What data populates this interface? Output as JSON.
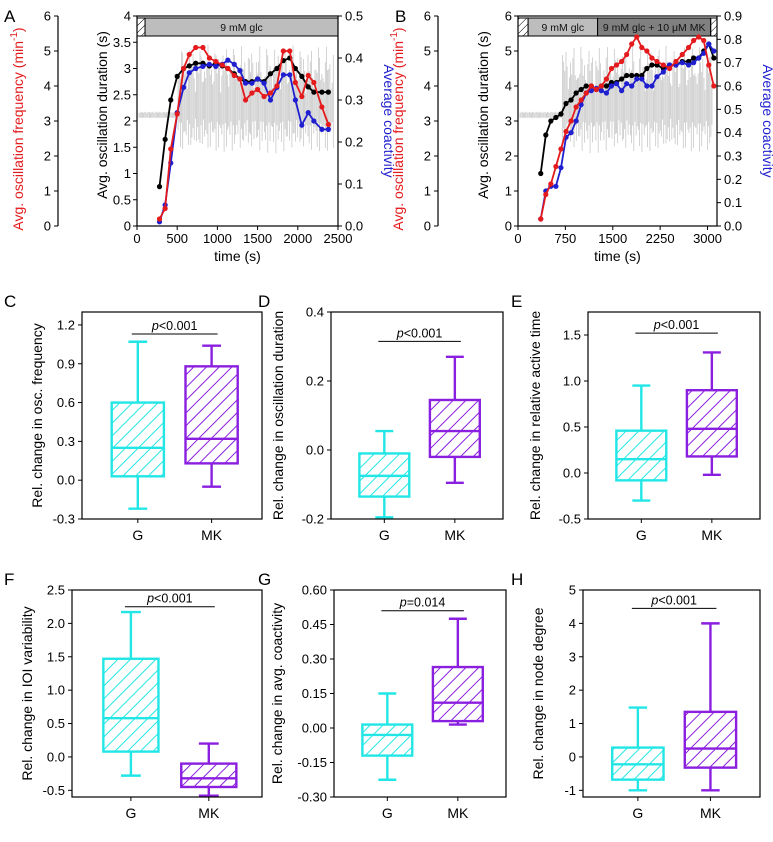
{
  "figure": {
    "colors": {
      "freq": "#e41a1c",
      "dur": "#000000",
      "coact": "#1f1fd0",
      "trace": "#c8c8c8",
      "g_box": "#22e6e6",
      "mk_box": "#8a1fe0",
      "bar_fill": "#bdbdbd",
      "bar_dark": "#808080"
    }
  },
  "chart_data": [
    {
      "id": "A",
      "panel_label": "A",
      "type": "line",
      "xlabel": "time (s)",
      "ylabel_left_outer": "Avg. oscillation frequency (min",
      "ylabel_left_outer_sup": "-1",
      "ylabel_left_outer_close": ")",
      "ylabel_left_inner": "Avg. oscillation duration (s)",
      "ylabel_right": "Average coactivity",
      "xlim": [
        0,
        2500
      ],
      "xticks": [
        "0",
        "500",
        "1000",
        "1500",
        "2000",
        "2500"
      ],
      "ylim_freq": [
        0,
        6
      ],
      "yticks_freq": [
        "0",
        "1",
        "2",
        "3",
        "4",
        "5",
        "6"
      ],
      "ylim_dur": [
        0,
        4
      ],
      "yticks_dur": [
        "0",
        "0.5",
        "1",
        "1.5",
        "2",
        "2.5",
        "3",
        "3.5",
        "4"
      ],
      "ylim_coact": [
        0,
        0.5
      ],
      "yticks_coact": [
        "0.0",
        "0.1",
        "0.2",
        "0.3",
        "0.4",
        "0.5"
      ],
      "condition_bar": [
        {
          "label": "",
          "start": 0,
          "end": 100,
          "style": "hatch"
        },
        {
          "label": "9 mM glc",
          "start": 100,
          "end": 2500,
          "style": "light"
        }
      ],
      "series": [
        {
          "name": "Avg. oscillation frequency",
          "axis": "freq",
          "x": [
            280,
            350,
            420,
            500,
            580,
            650,
            730,
            820,
            900,
            980,
            1060,
            1130,
            1210,
            1280,
            1350,
            1430,
            1500,
            1580,
            1660,
            1740,
            1820,
            1900,
            1970,
            2050,
            2130,
            2200,
            2300,
            2380
          ],
          "values": [
            0.2,
            0.5,
            2.2,
            3.2,
            4.5,
            4.9,
            5.1,
            5.1,
            4.8,
            4.7,
            4.6,
            4.5,
            4.3,
            4.2,
            3.6,
            3.8,
            3.9,
            3.7,
            3.8,
            4.0,
            5.0,
            5.0,
            4.1,
            3.7,
            4.3,
            4.1,
            3.4,
            2.9
          ]
        },
        {
          "name": "Avg. oscillation duration",
          "axis": "dur",
          "x": [
            280,
            350,
            420,
            500,
            580,
            650,
            730,
            820,
            900,
            980,
            1060,
            1130,
            1210,
            1280,
            1350,
            1430,
            1500,
            1580,
            1660,
            1740,
            1820,
            1900,
            1970,
            2050,
            2130,
            2200,
            2300,
            2380
          ],
          "values": [
            0.75,
            1.65,
            2.4,
            2.85,
            3.0,
            3.05,
            3.1,
            3.1,
            3.05,
            3.1,
            3.05,
            3.0,
            2.9,
            2.8,
            2.75,
            2.75,
            2.8,
            2.75,
            2.9,
            3.0,
            3.15,
            3.2,
            3.0,
            2.85,
            2.65,
            2.55,
            2.55,
            2.55
          ]
        },
        {
          "name": "Average coactivity",
          "axis": "coact",
          "x": [
            280,
            350,
            420,
            500,
            580,
            650,
            730,
            820,
            900,
            980,
            1060,
            1130,
            1210,
            1280,
            1350,
            1430,
            1500,
            1580,
            1660,
            1740,
            1820,
            1900,
            1970,
            2050,
            2130,
            2200,
            2300,
            2380
          ],
          "values": [
            0.01,
            0.05,
            0.15,
            0.27,
            0.33,
            0.365,
            0.375,
            0.38,
            0.385,
            0.38,
            0.385,
            0.395,
            0.385,
            0.37,
            0.34,
            0.34,
            0.35,
            0.34,
            0.3,
            0.33,
            0.36,
            0.36,
            0.3,
            0.24,
            0.27,
            0.25,
            0.23,
            0.23
          ]
        }
      ]
    },
    {
      "id": "B",
      "panel_label": "B",
      "type": "line",
      "xlabel": "time (s)",
      "ylabel_left_outer": "Avg. oscillation frequency (min",
      "ylabel_left_outer_sup": "-1",
      "ylabel_left_outer_close": ")",
      "ylabel_left_inner": "Avg. oscillation duration (s)",
      "ylabel_right": "Average coactivity",
      "xlim": [
        0,
        3150
      ],
      "xticks": [
        "0",
        "750",
        "1500",
        "2250",
        "3000"
      ],
      "ylim_freq": [
        0,
        6
      ],
      "yticks_freq": [
        "0",
        "1",
        "2",
        "3",
        "4",
        "5",
        "6"
      ],
      "ylim_dur": [
        0,
        6
      ],
      "yticks_dur": [
        "0",
        "1",
        "2",
        "3",
        "4",
        "5",
        "6"
      ],
      "ylim_coact": [
        0,
        0.9
      ],
      "yticks_coact": [
        "0.0",
        "0.1",
        "0.2",
        "0.3",
        "0.4",
        "0.5",
        "0.6",
        "0.7",
        "0.8",
        "0.9"
      ],
      "condition_bar": [
        {
          "label": "",
          "start": 0,
          "end": 160,
          "style": "hatch"
        },
        {
          "label": "9 mM glc",
          "start": 160,
          "end": 1260,
          "style": "light"
        },
        {
          "label": "9 mM glc + 10 μM MK",
          "start": 1260,
          "end": 3050,
          "style": "dark"
        },
        {
          "label": "",
          "start": 3050,
          "end": 3150,
          "style": "hatch"
        }
      ],
      "series": [
        {
          "name": "Avg. oscillation frequency",
          "axis": "freq",
          "x": [
            360,
            440,
            520,
            600,
            680,
            760,
            840,
            920,
            1000,
            1080,
            1160,
            1240,
            1320,
            1400,
            1480,
            1560,
            1640,
            1720,
            1800,
            1880,
            1960,
            2040,
            2120,
            2200,
            2300,
            2400,
            2500,
            2600,
            2700,
            2780,
            2860,
            2940,
            3020,
            3100
          ],
          "values": [
            0.2,
            0.9,
            1.2,
            1.7,
            2.2,
            2.7,
            3.0,
            3.4,
            3.6,
            3.8,
            4.0,
            3.9,
            4.0,
            4.2,
            4.5,
            4.6,
            4.7,
            4.9,
            5.2,
            5.4,
            5.1,
            5.0,
            4.8,
            4.7,
            4.6,
            4.5,
            4.7,
            4.9,
            5.1,
            5.3,
            5.4,
            5.3,
            4.6,
            4.0
          ]
        },
        {
          "name": "Avg. oscillation duration",
          "axis": "dur",
          "x": [
            360,
            440,
            520,
            600,
            680,
            760,
            840,
            920,
            1000,
            1080,
            1160,
            1240,
            1320,
            1400,
            1480,
            1560,
            1640,
            1720,
            1800,
            1880,
            1960,
            2040,
            2120,
            2200,
            2300,
            2400,
            2500,
            2600,
            2700,
            2780,
            2860,
            2940,
            3020,
            3100
          ],
          "values": [
            1.5,
            2.6,
            3.0,
            3.1,
            3.2,
            3.5,
            3.6,
            3.8,
            3.9,
            4.0,
            4.0,
            3.9,
            4.0,
            4.0,
            4.1,
            4.1,
            4.2,
            4.3,
            4.3,
            4.3,
            4.3,
            4.5,
            4.6,
            4.6,
            4.5,
            4.6,
            4.6,
            4.7,
            4.7,
            4.8,
            4.8,
            5.0,
            5.2,
            4.8
          ]
        },
        {
          "name": "Average coactivity",
          "axis": "coact",
          "x": [
            360,
            440,
            520,
            600,
            680,
            760,
            840,
            920,
            1000,
            1080,
            1160,
            1240,
            1320,
            1400,
            1480,
            1560,
            1640,
            1720,
            1800,
            1880,
            1960,
            2040,
            2120,
            2200,
            2300,
            2400,
            2500,
            2600,
            2700,
            2780,
            2860,
            2940,
            3020,
            3100
          ],
          "values": [
            0.03,
            0.15,
            0.17,
            0.17,
            0.25,
            0.38,
            0.4,
            0.45,
            0.52,
            0.57,
            0.58,
            0.59,
            0.58,
            0.57,
            0.6,
            0.61,
            0.58,
            0.61,
            0.6,
            0.63,
            0.63,
            0.6,
            0.6,
            0.64,
            0.66,
            0.69,
            0.69,
            0.7,
            0.69,
            0.7,
            0.72,
            0.74,
            0.78,
            0.75
          ]
        }
      ]
    },
    {
      "id": "C",
      "panel_label": "C",
      "type": "box",
      "ylabel": "Rel. change in osc. frequency",
      "ylim": [
        -0.3,
        1.3
      ],
      "yticks": [
        -0.3,
        0.0,
        0.3,
        0.6,
        0.9,
        1.2
      ],
      "ytick_labels": [
        "-0.3",
        "0.0",
        "0.3",
        "0.6",
        "0.9",
        "1.2"
      ],
      "categories": [
        "G",
        "MK"
      ],
      "boxes": [
        {
          "name": "G",
          "whisker_low": -0.22,
          "q1": 0.03,
          "median": 0.25,
          "q3": 0.6,
          "whisker_high": 1.07
        },
        {
          "name": "MK",
          "whisker_low": -0.05,
          "q1": 0.13,
          "median": 0.32,
          "q3": 0.88,
          "whisker_high": 1.04
        }
      ],
      "p_prefix": "p",
      "p_text": "<0.001",
      "p_y": 1.13
    },
    {
      "id": "D",
      "panel_label": "D",
      "type": "box",
      "ylabel": "Rel. change in oscillation duration",
      "ylim": [
        -0.2,
        0.4
      ],
      "yticks": [
        -0.2,
        0.0,
        0.2,
        0.4
      ],
      "ytick_labels": [
        "-0.2",
        "0.0",
        "0.2",
        "0.4"
      ],
      "categories": [
        "G",
        "MK"
      ],
      "boxes": [
        {
          "name": "G",
          "whisker_low": -0.195,
          "q1": -0.135,
          "median": -0.075,
          "q3": -0.01,
          "whisker_high": 0.055
        },
        {
          "name": "MK",
          "whisker_low": -0.095,
          "q1": -0.02,
          "median": 0.055,
          "q3": 0.145,
          "whisker_high": 0.27
        }
      ],
      "p_prefix": "p",
      "p_text": "<0.001",
      "p_y": 0.315
    },
    {
      "id": "E",
      "panel_label": "E",
      "type": "box",
      "ylabel": "Rel. change in relative active time",
      "ylim": [
        -0.5,
        1.75
      ],
      "yticks": [
        -0.5,
        0.0,
        0.5,
        1.0,
        1.5
      ],
      "ytick_labels": [
        "-0.5",
        "0.0",
        "0.5",
        "1.0",
        "1.5"
      ],
      "categories": [
        "G",
        "MK"
      ],
      "boxes": [
        {
          "name": "G",
          "whisker_low": -0.3,
          "q1": -0.08,
          "median": 0.15,
          "q3": 0.46,
          "whisker_high": 0.95
        },
        {
          "name": "MK",
          "whisker_low": -0.02,
          "q1": 0.18,
          "median": 0.48,
          "q3": 0.9,
          "whisker_high": 1.31
        }
      ],
      "p_prefix": "p",
      "p_text": "<0.001",
      "p_y": 1.52
    },
    {
      "id": "F",
      "panel_label": "F",
      "type": "box",
      "ylabel": "Rel. change in IOI variability",
      "ylim": [
        -0.6,
        2.5
      ],
      "yticks": [
        -0.5,
        0.0,
        0.5,
        1.0,
        1.5,
        2.0,
        2.5
      ],
      "ytick_labels": [
        "-0.5",
        "0.0",
        "0.5",
        "1.0",
        "1.5",
        "2.0",
        "2.5"
      ],
      "categories": [
        "G",
        "MK"
      ],
      "boxes": [
        {
          "name": "G",
          "whisker_low": -0.28,
          "q1": 0.08,
          "median": 0.58,
          "q3": 1.47,
          "whisker_high": 2.17
        },
        {
          "name": "MK",
          "whisker_low": -0.58,
          "q1": -0.45,
          "median": -0.32,
          "q3": -0.1,
          "whisker_high": 0.2
        }
      ],
      "p_prefix": "p",
      "p_text": "<0.001",
      "p_y": 2.25
    },
    {
      "id": "G",
      "panel_label": "G",
      "type": "box",
      "ylabel": "Rel. change in avg. coactivity",
      "ylim": [
        -0.3,
        0.6
      ],
      "yticks": [
        -0.3,
        -0.15,
        0.0,
        0.15,
        0.3,
        0.45,
        0.6
      ],
      "ytick_labels": [
        "-0.30",
        "-0.15",
        "0.00",
        "0.15",
        "0.30",
        "0.45",
        "0.60"
      ],
      "categories": [
        "G",
        "MK"
      ],
      "boxes": [
        {
          "name": "G",
          "whisker_low": -0.225,
          "q1": -0.12,
          "median": -0.03,
          "q3": 0.015,
          "whisker_high": 0.15
        },
        {
          "name": "MK",
          "whisker_low": 0.015,
          "q1": 0.03,
          "median": 0.11,
          "q3": 0.265,
          "whisker_high": 0.475
        }
      ],
      "p_prefix": "p",
      "p_text": "=0.014",
      "p_y": 0.51
    },
    {
      "id": "H",
      "panel_label": "H",
      "type": "box",
      "ylabel": "Rel. change in node degree",
      "ylim": [
        -1.2,
        5.0
      ],
      "yticks": [
        -1,
        0,
        1,
        2,
        3,
        4,
        5
      ],
      "ytick_labels": [
        "-1",
        "0",
        "1",
        "2",
        "3",
        "4",
        "5"
      ],
      "categories": [
        "G",
        "MK"
      ],
      "boxes": [
        {
          "name": "G",
          "whisker_low": -1.0,
          "q1": -0.68,
          "median": -0.22,
          "q3": 0.28,
          "whisker_high": 1.48
        },
        {
          "name": "MK",
          "whisker_low": -1.0,
          "q1": -0.32,
          "median": 0.25,
          "q3": 1.35,
          "whisker_high": 4.0
        }
      ],
      "p_prefix": "p",
      "p_text": "<0.001",
      "p_y": 4.45
    }
  ]
}
